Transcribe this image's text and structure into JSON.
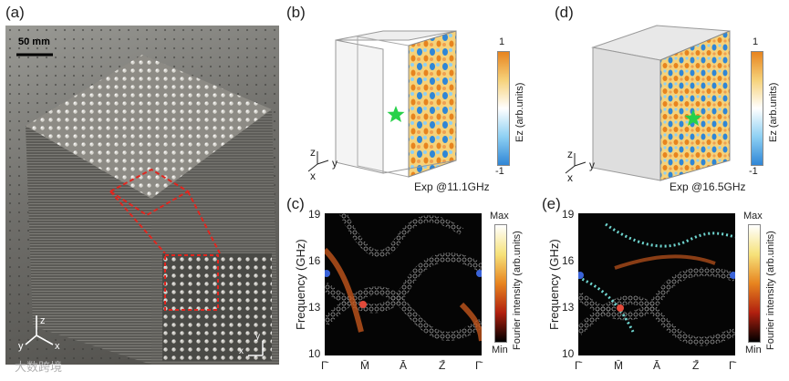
{
  "panels": {
    "a": {
      "label": "(a)",
      "scale_bar": "50 mm",
      "axes": {
        "z": "z",
        "y": "y",
        "x": "x"
      },
      "inset_axes": {
        "y": "y",
        "x": "x"
      }
    },
    "b": {
      "label": "(b)",
      "caption": "Exp @11.1GHz",
      "axes": {
        "z": "z",
        "y": "y",
        "x": "x"
      },
      "colorbar": {
        "max": "1",
        "min": "-1",
        "label": "Ez (arb.units)"
      }
    },
    "c": {
      "label": "(c)"
    },
    "d": {
      "label": "(d)",
      "caption": "Exp @16.5GHz",
      "axes": {
        "z": "z",
        "y": "y",
        "x": "x"
      },
      "colorbar": {
        "max": "1",
        "min": "-1",
        "label": "Ez (arb.units)"
      }
    },
    "e": {
      "label": "(e)"
    }
  },
  "band_plot": {
    "ylabel": "Frequency (GHz)",
    "yticks": [
      "19",
      "16",
      "13",
      "10"
    ],
    "xticks": [
      "Γ̄",
      "M̄",
      "Ā",
      "Z̄",
      "Γ̄"
    ],
    "colorbar": {
      "max": "Max",
      "min": "Min",
      "label": "Fourier intensity (arb.units)"
    }
  },
  "watermark": "大数跨境",
  "colors": {
    "star": "#27d14a",
    "sphere_blue": "#3a63d8",
    "sphere_red": "#e24a3a"
  }
}
